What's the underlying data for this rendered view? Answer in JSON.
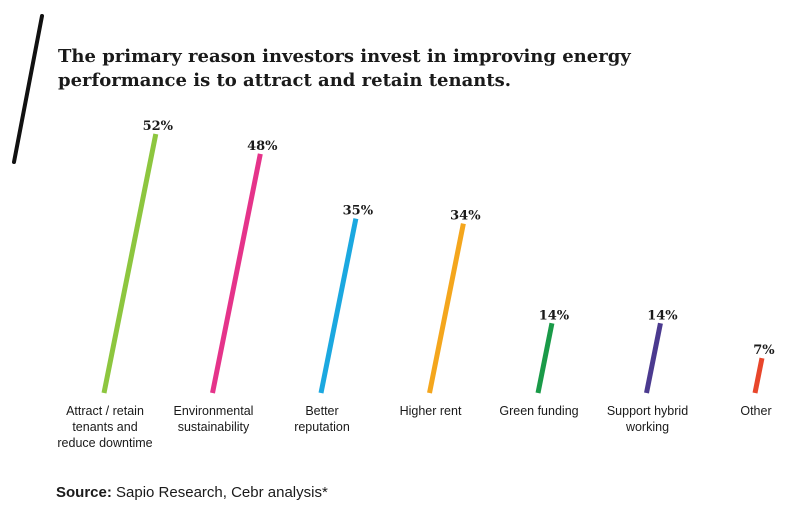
{
  "chart_data": {
    "type": "bar",
    "title": "The primary reason investors invest in improving energy performance is to attract and retain tenants.",
    "categories": [
      "Attract / retain tenants and reduce downtime",
      "Environmental sustainability",
      "Better reputation",
      "Higher rent",
      "Green funding",
      "Support hybrid working",
      "Other"
    ],
    "category_lines": [
      [
        "Attract / retain",
        "tenants and",
        "reduce downtime"
      ],
      [
        "Environmental",
        "sustainability"
      ],
      [
        "Better",
        "reputation"
      ],
      [
        "Higher rent"
      ],
      [
        "Green funding"
      ],
      [
        "Support hybrid",
        "working"
      ],
      [
        "Other"
      ]
    ],
    "values": [
      52,
      48,
      35,
      34,
      14,
      14,
      7
    ],
    "value_labels": [
      "52%",
      "48%",
      "35%",
      "34%",
      "14%",
      "14%",
      "7%"
    ],
    "colors": [
      "#8dc63f",
      "#e5338a",
      "#1ba8e0",
      "#f4a61d",
      "#1a9a48",
      "#4b3a8f",
      "#e8462b"
    ],
    "accent_color": "#111111",
    "ylim": [
      0,
      52
    ],
    "grid": false,
    "legend": "none"
  },
  "source": {
    "label": "Source:",
    "text": " Sapio Research, Cebr analysis*"
  }
}
